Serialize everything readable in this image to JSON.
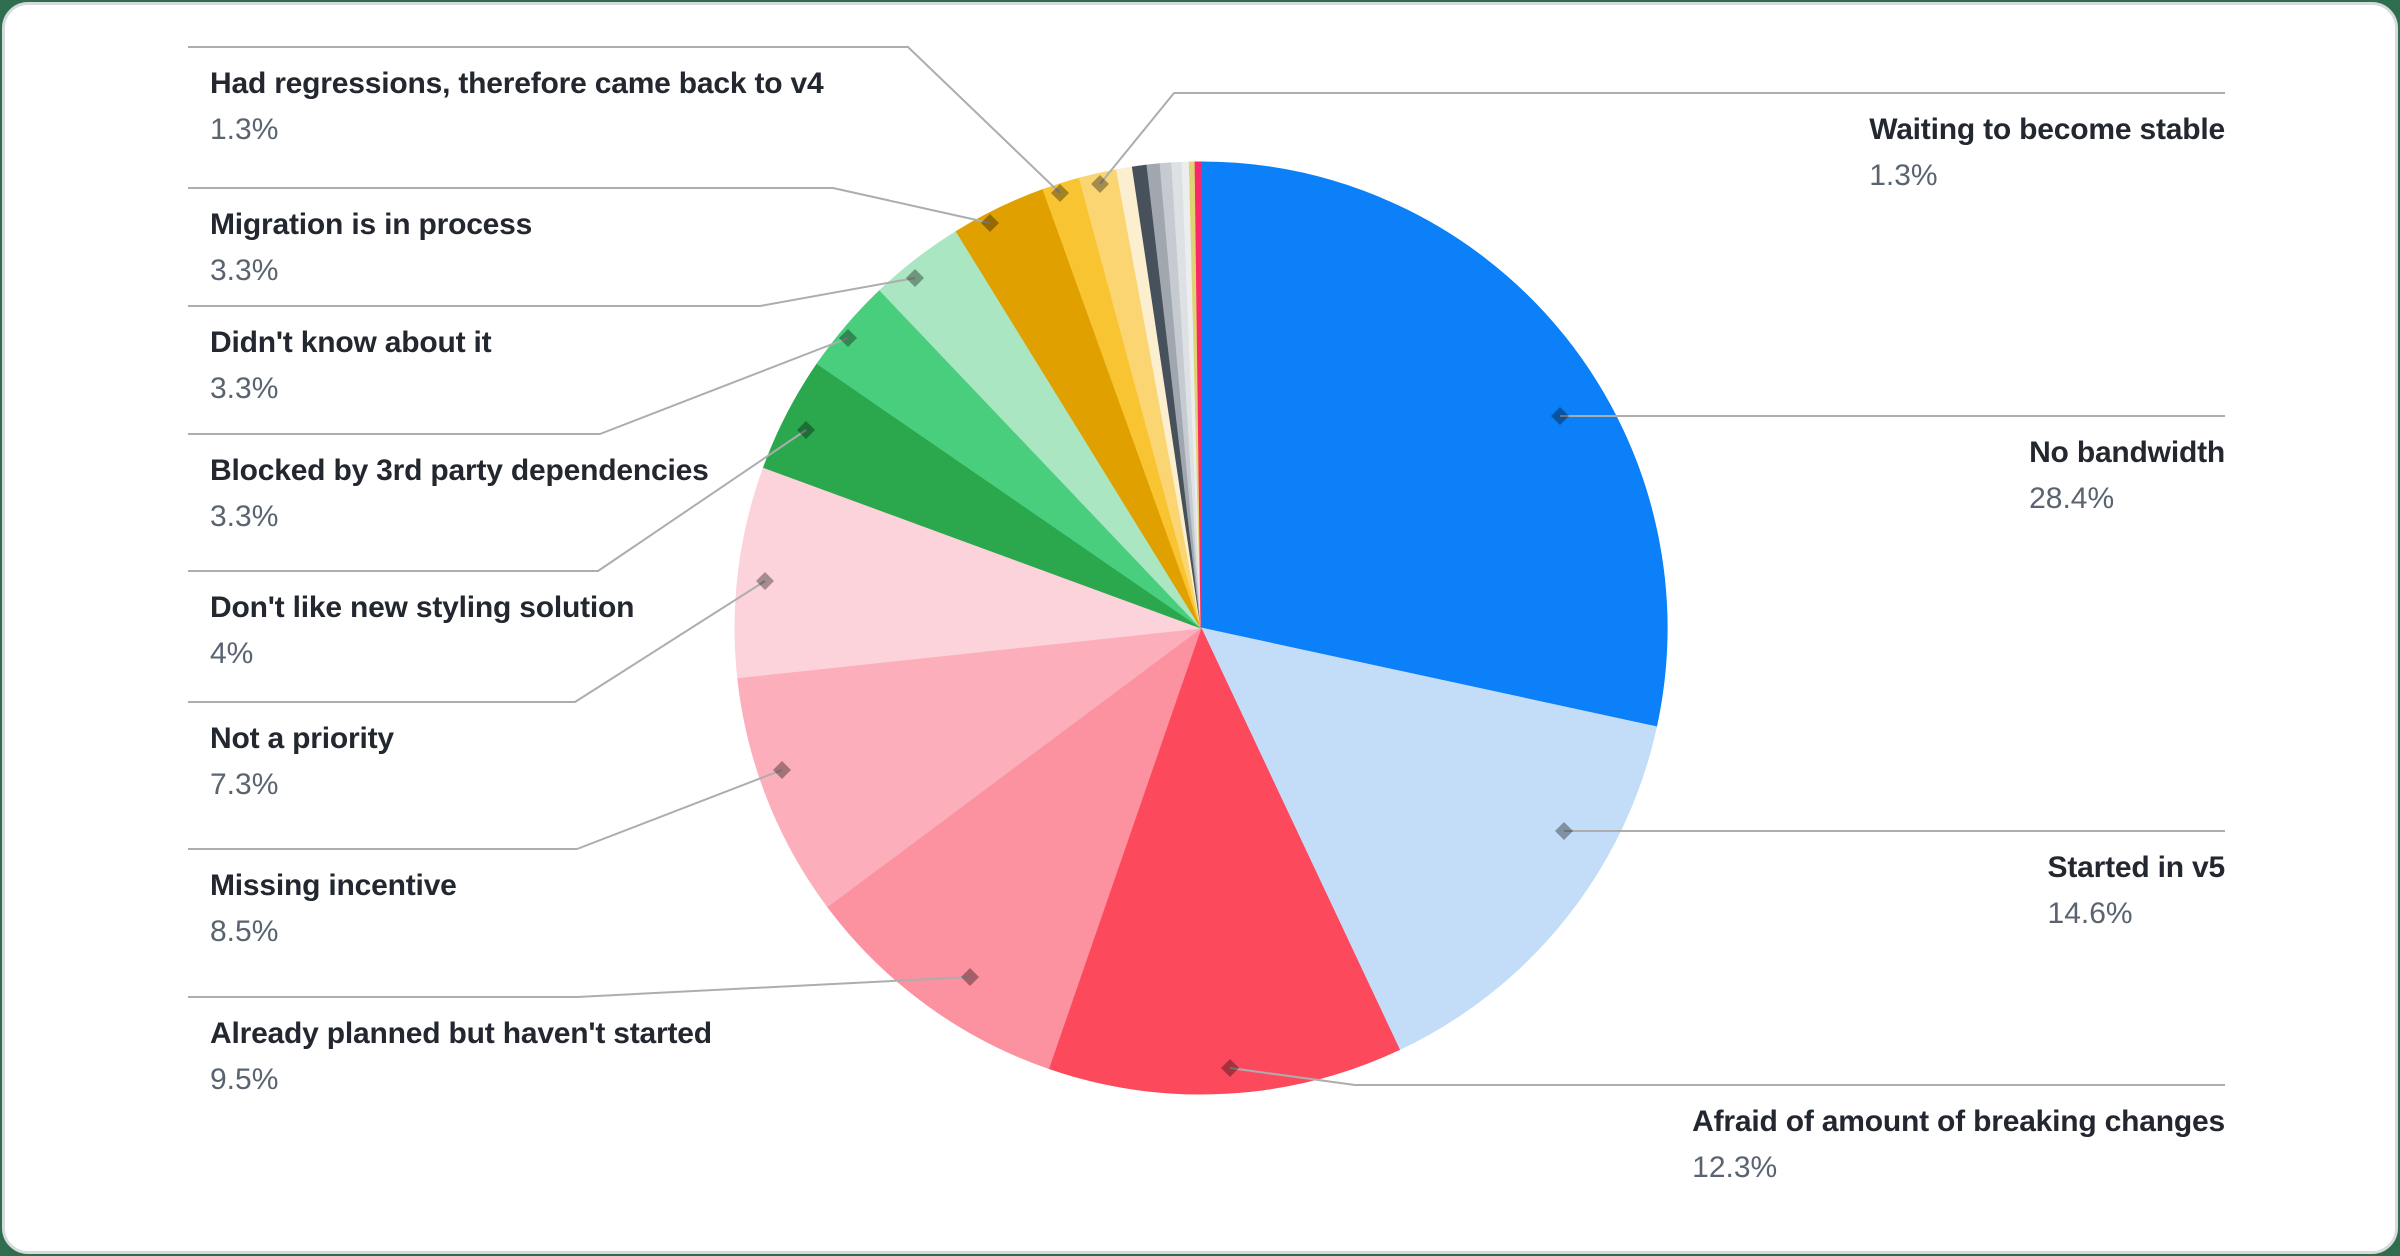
{
  "canvas": {
    "background_color": "#2E6E4E",
    "card": {
      "background": "#FFFFFF",
      "border_color": "#D6DADD"
    }
  },
  "chart_data": {
    "type": "pie",
    "title": "",
    "unit": "%",
    "legend": "none",
    "label_style": "outside-callout",
    "start_angle_deg_from_top": 0,
    "direction": "clockwise",
    "series": [
      {
        "name": "No bandwidth",
        "value": 28.4,
        "pct_label": "28.4%",
        "color": "#0B80F8",
        "label_side": "right"
      },
      {
        "name": "Started in v5",
        "value": 14.6,
        "pct_label": "14.6%",
        "color": "#C3DDF9",
        "label_side": "right"
      },
      {
        "name": "Afraid of amount of breaking changes",
        "value": 12.3,
        "pct_label": "12.3%",
        "color": "#FC4A5C",
        "label_side": "right"
      },
      {
        "name": "Already planned but haven't started",
        "value": 9.5,
        "pct_label": "9.5%",
        "color": "#FC919F",
        "label_side": "left"
      },
      {
        "name": "Missing incentive",
        "value": 8.5,
        "pct_label": "8.5%",
        "color": "#FCAEBA",
        "label_side": "left"
      },
      {
        "name": "Not a priority",
        "value": 7.3,
        "pct_label": "7.3%",
        "color": "#FCD3DA",
        "label_side": "left"
      },
      {
        "name": "Don't like new styling solution",
        "value": 4,
        "pct_label": "4%",
        "color": "#2BA84E",
        "label_side": "left"
      },
      {
        "name": "Blocked by 3rd party dependencies",
        "value": 3.3,
        "pct_label": "3.3%",
        "color": "#49CE7D",
        "label_side": "left"
      },
      {
        "name": "Didn't know about it",
        "value": 3.3,
        "pct_label": "3.3%",
        "color": "#A9E6C1",
        "label_side": "left"
      },
      {
        "name": "Migration is in process",
        "value": 3.3,
        "pct_label": "3.3%",
        "color": "#DFA000",
        "label_side": "left"
      },
      {
        "name": "Had regressions, therefore came back to v4",
        "value": 1.3,
        "pct_label": "1.3%",
        "color": "#F9C432",
        "label_side": "left"
      },
      {
        "name": "Waiting to become stable",
        "value": 1.3,
        "pct_label": "1.3%",
        "color": "#FBD572",
        "label_side": "right"
      }
    ],
    "unlabeled_segments": [
      {
        "color": "#FCEFD0",
        "value": 0.55
      },
      {
        "color": "#47515B",
        "value": 0.5
      },
      {
        "color": "#A0A7AE",
        "value": 0.45
      },
      {
        "color": "#C6CBD1",
        "value": 0.4
      },
      {
        "color": "#DEE1E4",
        "value": 0.35
      },
      {
        "color": "#EBEDEF",
        "value": 0.25
      },
      {
        "color": "#E0D472",
        "value": 0.2
      },
      {
        "color": "#F7286D",
        "value": 0.2
      }
    ],
    "leader_line_color": "#ADADAF",
    "marker_overlay_color": "rgba(0,0,0,0.34)"
  }
}
